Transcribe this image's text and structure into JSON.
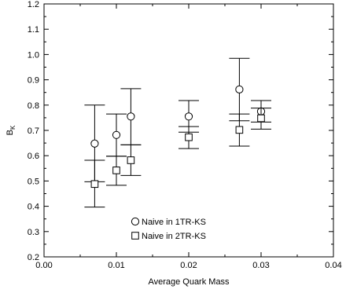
{
  "chart_data": {
    "type": "scatter",
    "xlabel": "Average Quark Mass",
    "ylabel_main": "B",
    "ylabel_sub": "K",
    "xlim": [
      0.0,
      0.04
    ],
    "ylim": [
      0.2,
      1.2
    ],
    "xticks": [
      0.0,
      0.01,
      0.02,
      0.03,
      0.04
    ],
    "xtick_labels": [
      "0.00",
      "0.01",
      "0.02",
      "0.03",
      "0.04"
    ],
    "yticks": [
      0.2,
      0.3,
      0.4,
      0.5,
      0.6,
      0.7,
      0.8,
      0.9,
      1.0,
      1.1,
      1.2
    ],
    "ytick_labels": [
      "0.2",
      "0.3",
      "0.4",
      "0.5",
      "0.6",
      "0.7",
      "0.8",
      "0.9",
      "1.0",
      "1.1",
      "1.2"
    ],
    "grid": false,
    "legend_position": "lower-center",
    "series": [
      {
        "name": "Naive in 1TR-KS",
        "marker": "circle",
        "points": [
          {
            "x": 0.007,
            "y": 0.648,
            "ylo": 0.497,
            "yhi": 0.8
          },
          {
            "x": 0.01,
            "y": 0.682,
            "ylo": 0.598,
            "yhi": 0.765
          },
          {
            "x": 0.012,
            "y": 0.755,
            "ylo": 0.643,
            "yhi": 0.865
          },
          {
            "x": 0.02,
            "y": 0.755,
            "ylo": 0.693,
            "yhi": 0.818
          },
          {
            "x": 0.027,
            "y": 0.862,
            "ylo": 0.738,
            "yhi": 0.985
          },
          {
            "x": 0.03,
            "y": 0.775,
            "ylo": 0.733,
            "yhi": 0.818
          }
        ]
      },
      {
        "name": "Naive in 2TR-KS",
        "marker": "square",
        "points": [
          {
            "x": 0.007,
            "y": 0.488,
            "ylo": 0.397,
            "yhi": 0.582
          },
          {
            "x": 0.01,
            "y": 0.542,
            "ylo": 0.483,
            "yhi": 0.598
          },
          {
            "x": 0.012,
            "y": 0.582,
            "ylo": 0.522,
            "yhi": 0.643
          },
          {
            "x": 0.02,
            "y": 0.673,
            "ylo": 0.628,
            "yhi": 0.715
          },
          {
            "x": 0.027,
            "y": 0.702,
            "ylo": 0.638,
            "yhi": 0.765
          },
          {
            "x": 0.03,
            "y": 0.748,
            "ylo": 0.705,
            "yhi": 0.788
          }
        ]
      }
    ]
  }
}
